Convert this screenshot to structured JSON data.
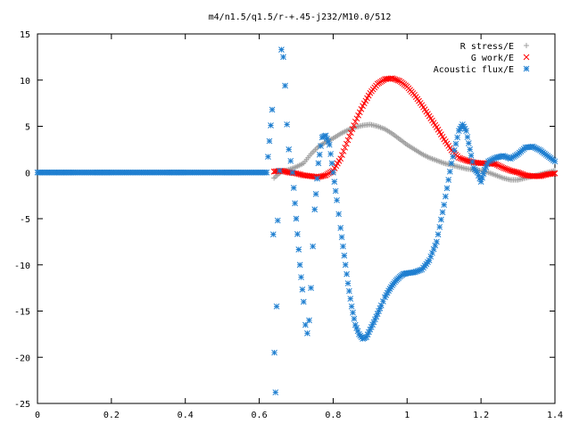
{
  "chart_data": {
    "type": "scatter",
    "title": "m4/n1.5/q1.5/r-+.45-j232/M10.0/512",
    "xlabel": "",
    "ylabel": "",
    "xlim": [
      0,
      1.4
    ],
    "ylim": [
      -25,
      15
    ],
    "grid": false,
    "legend": "top-right",
    "x_ticks": [
      "0",
      "0.2",
      "0.4",
      "0.6",
      "0.8",
      "1",
      "1.2",
      "1.4"
    ],
    "y_ticks": [
      "-25",
      "-20",
      "-15",
      "-10",
      "-5",
      "0",
      "5",
      "10",
      "15"
    ],
    "series": [
      {
        "name": "R stress/E",
        "marker": "+",
        "color": "#a0a0a0",
        "x": [
          0.64,
          0.66,
          0.68,
          0.7,
          0.72,
          0.74,
          0.76,
          0.78,
          0.8,
          0.82,
          0.84,
          0.86,
          0.88,
          0.9,
          0.92,
          0.94,
          0.96,
          0.98,
          1.0,
          1.02,
          1.04,
          1.06,
          1.08,
          1.1,
          1.12,
          1.14,
          1.16,
          1.18,
          1.2,
          1.22,
          1.24,
          1.26,
          1.28,
          1.3,
          1.32,
          1.34,
          1.36,
          1.38,
          1.4
        ],
        "y": [
          -0.6,
          0.1,
          0.3,
          0.6,
          1.0,
          2.0,
          2.8,
          3.3,
          3.7,
          4.2,
          4.6,
          4.9,
          5.1,
          5.2,
          5.0,
          4.7,
          4.2,
          3.6,
          3.0,
          2.5,
          2.0,
          1.6,
          1.3,
          1.0,
          0.8,
          0.6,
          0.4,
          0.3,
          0.2,
          0.0,
          -0.3,
          -0.6,
          -0.8,
          -0.8,
          -0.6,
          -0.4,
          -0.2,
          0.0,
          0.2
        ]
      },
      {
        "name": "G work/E",
        "marker": "x",
        "color": "#ff0000",
        "x": [
          0.64,
          0.66,
          0.68,
          0.7,
          0.72,
          0.74,
          0.76,
          0.78,
          0.8,
          0.82,
          0.84,
          0.86,
          0.88,
          0.9,
          0.92,
          0.94,
          0.96,
          0.98,
          1.0,
          1.02,
          1.04,
          1.06,
          1.08,
          1.1,
          1.12,
          1.14,
          1.16,
          1.18,
          1.2,
          1.22,
          1.24,
          1.26,
          1.28,
          1.3,
          1.32,
          1.34,
          1.36,
          1.38,
          1.4
        ],
        "y": [
          0.1,
          0.2,
          0.0,
          -0.1,
          -0.3,
          -0.4,
          -0.5,
          -0.3,
          0.2,
          1.5,
          3.5,
          5.5,
          7.2,
          8.6,
          9.6,
          10.1,
          10.2,
          9.9,
          9.3,
          8.4,
          7.3,
          6.1,
          4.9,
          3.6,
          2.4,
          1.6,
          1.3,
          1.1,
          1.0,
          1.0,
          0.9,
          0.5,
          0.2,
          0.0,
          -0.3,
          -0.4,
          -0.4,
          -0.2,
          -0.1
        ]
      },
      {
        "name": "Acoustic flux/E",
        "marker": "*",
        "color": "#1f7fd0",
        "x": [
          0.0,
          0.05,
          0.1,
          0.15,
          0.2,
          0.25,
          0.3,
          0.35,
          0.4,
          0.45,
          0.5,
          0.55,
          0.6,
          0.62,
          0.635,
          0.638,
          0.641,
          0.644,
          0.65,
          0.655,
          0.66,
          0.665,
          0.67,
          0.675,
          0.68,
          0.69,
          0.7,
          0.71,
          0.72,
          0.725,
          0.73,
          0.735,
          0.74,
          0.745,
          0.75,
          0.76,
          0.77,
          0.78,
          0.79,
          0.8,
          0.81,
          0.82,
          0.83,
          0.84,
          0.85,
          0.86,
          0.87,
          0.88,
          0.89,
          0.9,
          0.91,
          0.92,
          0.93,
          0.94,
          0.95,
          0.96,
          0.97,
          0.98,
          0.99,
          1.0,
          1.02,
          1.04,
          1.06,
          1.08,
          1.1,
          1.12,
          1.14,
          1.15,
          1.16,
          1.17,
          1.18,
          1.19,
          1.2,
          1.21,
          1.22,
          1.24,
          1.26,
          1.28,
          1.3,
          1.32,
          1.34,
          1.36,
          1.38,
          1.4
        ],
        "y": [
          0,
          0,
          0,
          0,
          0,
          0,
          0,
          0,
          0,
          0,
          0,
          0,
          0,
          0,
          6.8,
          -6.7,
          -19.5,
          -23.8,
          -5.2,
          0.2,
          13.3,
          12.5,
          9.4,
          5.2,
          2.5,
          0.0,
          -5.0,
          -10.0,
          -14.0,
          -16.5,
          -17.4,
          -16.0,
          -12.5,
          -8.0,
          -4.0,
          1.0,
          3.8,
          4.0,
          3.0,
          0.0,
          -3.0,
          -6.0,
          -9.0,
          -12.0,
          -14.5,
          -16.5,
          -17.5,
          -18.0,
          -17.8,
          -17.0,
          -16.2,
          -15.3,
          -14.4,
          -13.5,
          -12.8,
          -12.2,
          -11.7,
          -11.3,
          -11.0,
          -10.9,
          -10.8,
          -10.5,
          -9.5,
          -7.5,
          -3.5,
          1.0,
          4.5,
          5.2,
          4.5,
          2.5,
          0.5,
          0.0,
          -1.0,
          0.3,
          1.2,
          1.6,
          1.8,
          1.5,
          2.0,
          2.7,
          2.8,
          2.4,
          1.8,
          1.2
        ]
      }
    ]
  }
}
